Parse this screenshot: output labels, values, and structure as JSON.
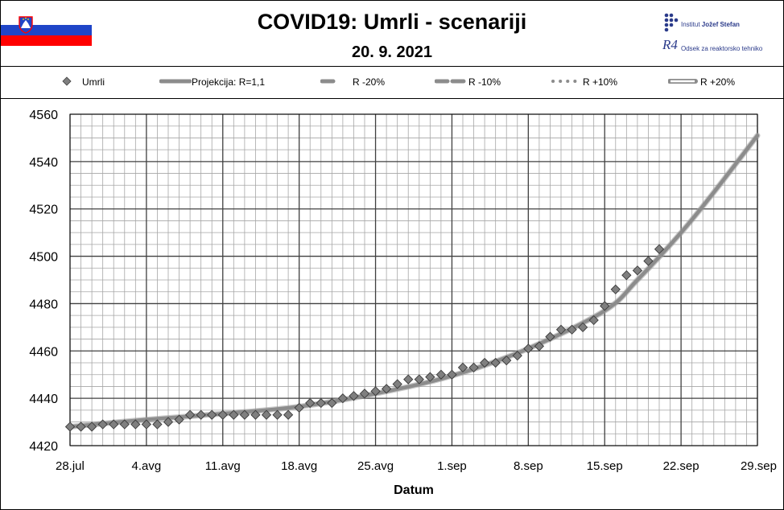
{
  "header": {
    "title": "COVID19: Umrli - scenariji",
    "date": "20. 9. 2021",
    "institute_name_prefix": "Institut ",
    "institute_name_bold": "Jožef Stefan",
    "department": "Odsek za reaktorsko tehniko",
    "department_logo": "R4",
    "flag": "slovenia-flag",
    "colors": {
      "flag_blue": "#1f45c8",
      "flag_red": "#ff0000"
    }
  },
  "legend": [
    {
      "label": "Umrli",
      "style": "diamond"
    },
    {
      "label": "Projekcija: R=1,1",
      "style": "thick-solid"
    },
    {
      "label": "R -20%",
      "style": "short-dash"
    },
    {
      "label": "R -10%",
      "style": "long-dash"
    },
    {
      "label": "R +10%",
      "style": "dots"
    },
    {
      "label": "R +20%",
      "style": "double-line"
    }
  ],
  "chart_data": {
    "type": "line",
    "title": "COVID19: Umrli - scenariji",
    "subtitle": "20. 9. 2021",
    "xlabel": "Datum",
    "ylabel": "",
    "xlim": [
      "2021-07-28",
      "2021-09-29"
    ],
    "ylim": [
      4420,
      4560
    ],
    "yticks": [
      4420,
      4440,
      4460,
      4480,
      4500,
      4520,
      4540,
      4560
    ],
    "xticks": [
      {
        "date": "2021-07-28",
        "label": "28.jul"
      },
      {
        "date": "2021-08-04",
        "label": "4.avg"
      },
      {
        "date": "2021-08-11",
        "label": "11.avg"
      },
      {
        "date": "2021-08-18",
        "label": "18.avg"
      },
      {
        "date": "2021-08-25",
        "label": "25.avg"
      },
      {
        "date": "2021-09-01",
        "label": "1.sep"
      },
      {
        "date": "2021-09-08",
        "label": "8.sep"
      },
      {
        "date": "2021-09-15",
        "label": "15.sep"
      },
      {
        "date": "2021-09-22",
        "label": "22.sep"
      },
      {
        "date": "2021-09-29",
        "label": "29.sep"
      }
    ],
    "grid": true,
    "legend_position": "top",
    "colors": {
      "marker": "#7f7f7f",
      "projection": "#8c8c8c"
    },
    "series": [
      {
        "name": "Umrli",
        "style": "markers",
        "x": [
          "2021-07-28",
          "2021-07-29",
          "2021-07-30",
          "2021-07-31",
          "2021-08-01",
          "2021-08-02",
          "2021-08-03",
          "2021-08-04",
          "2021-08-05",
          "2021-08-06",
          "2021-08-07",
          "2021-08-08",
          "2021-08-09",
          "2021-08-10",
          "2021-08-11",
          "2021-08-12",
          "2021-08-13",
          "2021-08-14",
          "2021-08-15",
          "2021-08-16",
          "2021-08-17",
          "2021-08-18",
          "2021-08-19",
          "2021-08-20",
          "2021-08-21",
          "2021-08-22",
          "2021-08-23",
          "2021-08-24",
          "2021-08-25",
          "2021-08-26",
          "2021-08-27",
          "2021-08-28",
          "2021-08-29",
          "2021-08-30",
          "2021-08-31",
          "2021-09-01",
          "2021-09-02",
          "2021-09-03",
          "2021-09-04",
          "2021-09-05",
          "2021-09-06",
          "2021-09-07",
          "2021-09-08",
          "2021-09-09",
          "2021-09-10",
          "2021-09-11",
          "2021-09-12",
          "2021-09-13",
          "2021-09-14",
          "2021-09-15",
          "2021-09-16",
          "2021-09-17",
          "2021-09-18",
          "2021-09-19",
          "2021-09-20"
        ],
        "y": [
          4428,
          4428,
          4428,
          4429,
          4429,
          4429,
          4429,
          4429,
          4429,
          4430,
          4431,
          4433,
          4433,
          4433,
          4433,
          4433,
          4433,
          4433,
          4433,
          4433,
          4433,
          4436,
          4438,
          4438,
          4438,
          4440,
          4441,
          4442,
          4443,
          4444,
          4446,
          4448,
          4448,
          4449,
          4450,
          4450,
          4453,
          4453,
          4455,
          4455,
          4456,
          4458,
          4461,
          4462,
          4466,
          4469,
          4469,
          4470,
          4473,
          4479,
          4486,
          4492,
          4494,
          4498,
          4503
        ]
      },
      {
        "name": "Projekcija: R=1,1",
        "style": "thick-solid",
        "x": [
          "2021-07-28",
          "2021-08-04",
          "2021-08-11",
          "2021-08-18",
          "2021-08-25",
          "2021-09-01",
          "2021-09-08",
          "2021-09-15",
          "2021-09-18",
          "2021-09-22",
          "2021-09-25",
          "2021-09-29"
        ],
        "y": [
          4428,
          4431,
          4433.5,
          4436.5,
          4442,
          4449.5,
          4461,
          4477,
          4490,
          4510,
          4527,
          4551
        ]
      }
    ]
  }
}
